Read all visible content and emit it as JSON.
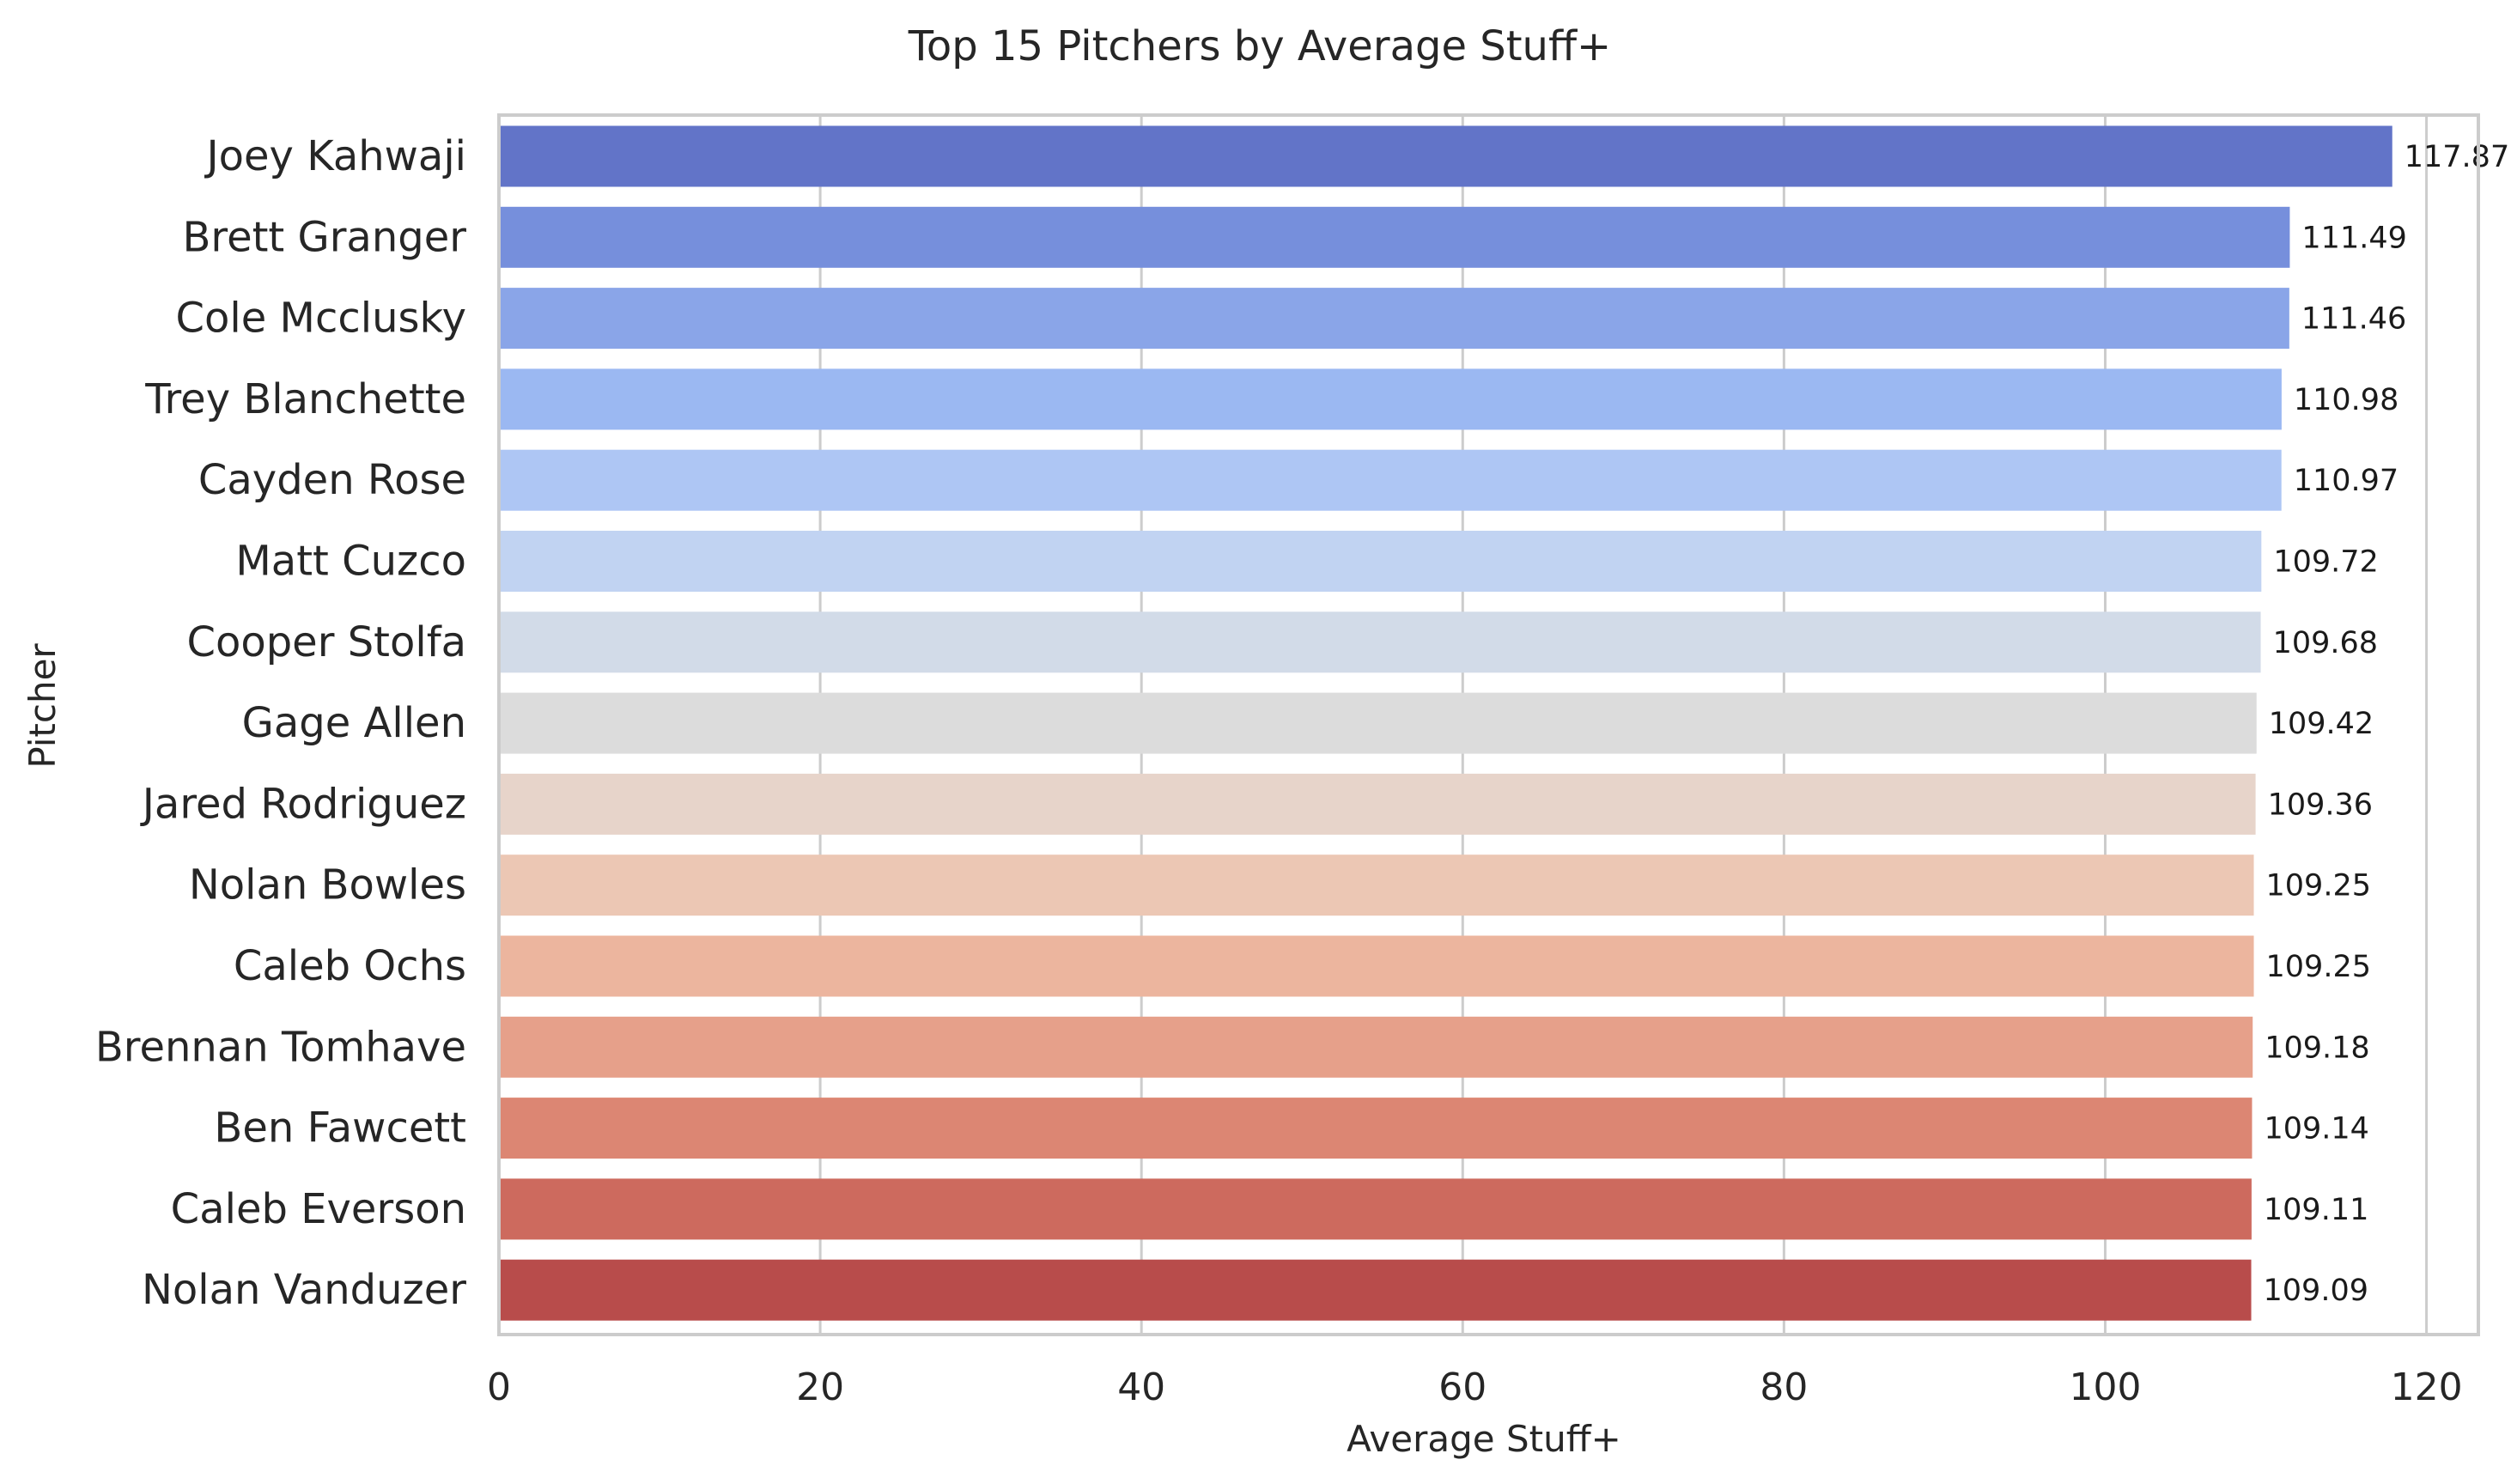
{
  "chart_data": {
    "type": "bar",
    "orientation": "horizontal",
    "title": "Top 15 Pitchers by Average Stuff+",
    "xlabel": "Average Stuff+",
    "ylabel": "Pitcher",
    "xlim": [
      0,
      124
    ],
    "xticks": [
      0,
      20,
      40,
      60,
      80,
      100,
      120
    ],
    "grid": true,
    "categories": [
      "Joey Kahwaji",
      "Brett Granger",
      "Cole Mcclusky",
      "Trey Blanchette",
      "Cayden Rose",
      "Matt Cuzco",
      "Cooper Stolfa",
      "Gage Allen",
      "Jared Rodriguez",
      "Nolan Bowles",
      "Caleb Ochs",
      "Brennan Tomhave",
      "Ben Fawcett",
      "Caleb Everson",
      "Nolan Vanduzer"
    ],
    "values": [
      117.87,
      111.49,
      111.46,
      110.98,
      110.97,
      109.72,
      109.68,
      109.42,
      109.36,
      109.25,
      109.25,
      109.18,
      109.14,
      109.11,
      109.09
    ],
    "data_labels": [
      "117.87",
      "111.49",
      "111.46",
      "110.98",
      "110.97",
      "109.72",
      "109.68",
      "109.42",
      "109.36",
      "109.25",
      "109.25",
      "109.18",
      "109.14",
      "109.11",
      "109.09"
    ],
    "colors": [
      "#6274c8",
      "#768fdc",
      "#8aa5e8",
      "#9bb8f2",
      "#aec6f4",
      "#c1d3f2",
      "#d2dbe8",
      "#dcdcdc",
      "#e7d4ca",
      "#ecc7b4",
      "#ecb59e",
      "#e6a08a",
      "#dc8673",
      "#cd6a5e",
      "#b84c4b"
    ]
  }
}
